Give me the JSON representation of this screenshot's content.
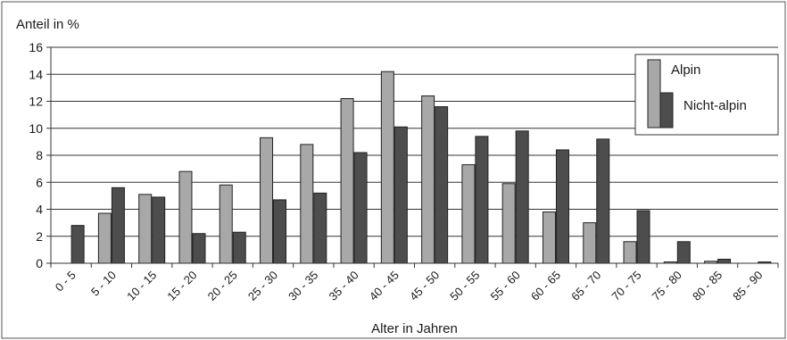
{
  "chart_data": {
    "type": "bar",
    "ylabel": "Anteil in %",
    "xlabel": "Alter in Jahren",
    "ylim": [
      0,
      16
    ],
    "yticks": [
      0,
      2,
      4,
      6,
      8,
      10,
      12,
      14,
      16
    ],
    "grid": true,
    "legend_position": "top-right",
    "categories": [
      "0 - 5",
      "5 - 10",
      "10 - 15",
      "15 - 20",
      "20 - 25",
      "25 - 30",
      "30 - 35",
      "35 - 40",
      "40 - 45",
      "45 - 50",
      "50 - 55",
      "55 - 60",
      "60 - 65",
      "65 - 70",
      "70 - 75",
      "75 - 80",
      "80 - 85",
      "85 - 90"
    ],
    "series": [
      {
        "name": "Alpin",
        "color": "#a8a8a8",
        "values": [
          0,
          3.7,
          5.1,
          6.8,
          5.8,
          9.3,
          8.8,
          12.2,
          14.2,
          12.4,
          7.3,
          5.9,
          3.8,
          3.0,
          1.6,
          0.1,
          0.15,
          0
        ]
      },
      {
        "name": "Nicht-alpin",
        "color": "#4d4d4d",
        "values": [
          2.8,
          5.6,
          4.9,
          2.2,
          2.3,
          4.7,
          5.2,
          8.2,
          10.1,
          11.6,
          9.4,
          9.8,
          8.4,
          9.2,
          3.9,
          1.6,
          0.3,
          0.1
        ]
      }
    ]
  }
}
